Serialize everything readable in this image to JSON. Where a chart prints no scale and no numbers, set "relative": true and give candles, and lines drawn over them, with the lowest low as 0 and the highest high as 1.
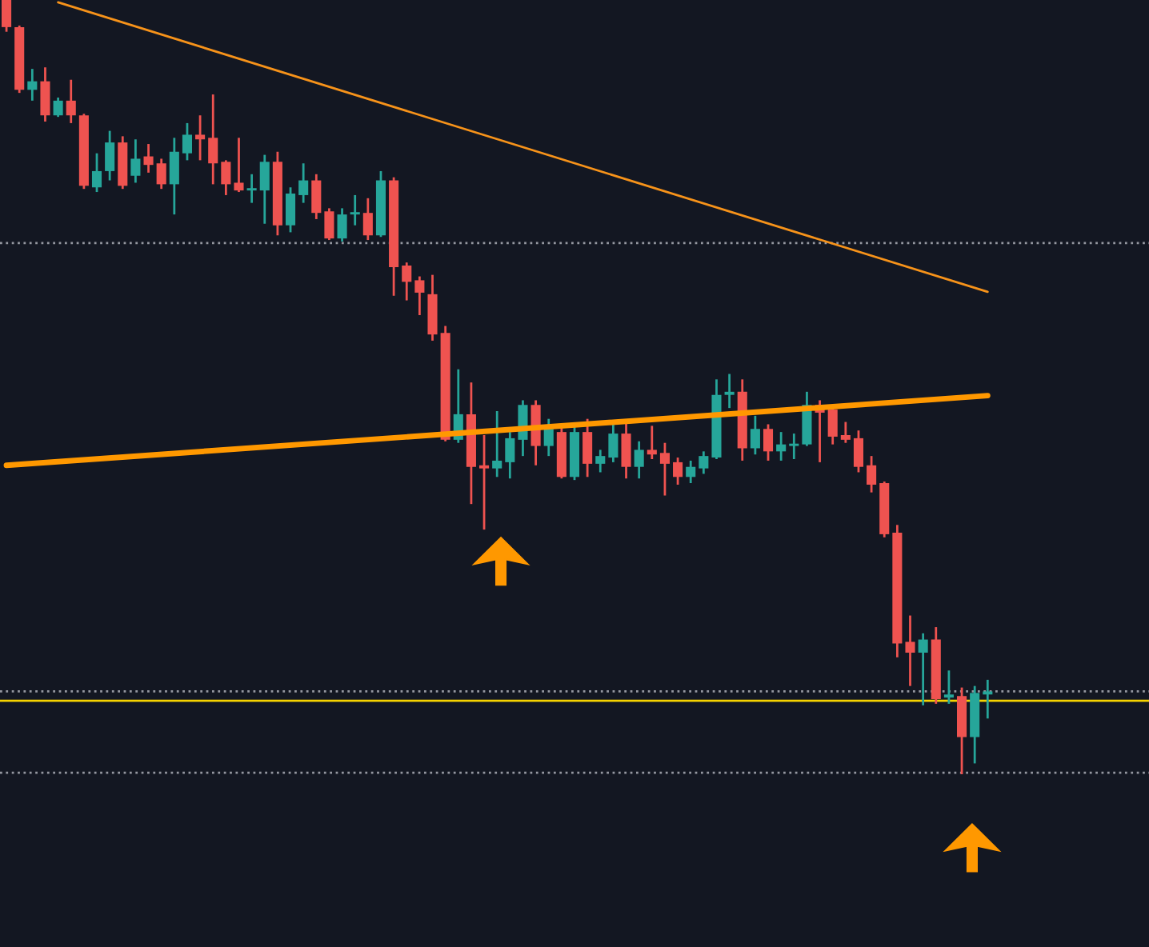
{
  "chart_data": {
    "type": "candlestick",
    "relative": true,
    "tick_labels": false,
    "categories": [
      null,
      null,
      null,
      null,
      null,
      null,
      null,
      null,
      null,
      null,
      null,
      null,
      null,
      null,
      null,
      null,
      null,
      null,
      null,
      null,
      null,
      null,
      null,
      null,
      null,
      null,
      null,
      null,
      null,
      null,
      null,
      null,
      null,
      null,
      null,
      null,
      null,
      null,
      null,
      null,
      null,
      null,
      null,
      null,
      null,
      null,
      null,
      null,
      null,
      null,
      null,
      null,
      null,
      null,
      null,
      null,
      null,
      null,
      null,
      null,
      null,
      null,
      null,
      null,
      null,
      null,
      null,
      null,
      null,
      null,
      null,
      null,
      null,
      null,
      null,
      null,
      null
    ],
    "ohlc": [
      [
        1.0,
        1.0,
        0.959,
        0.965
      ],
      [
        0.965,
        0.967,
        0.88,
        0.884
      ],
      [
        0.884,
        0.911,
        0.87,
        0.895
      ],
      [
        0.895,
        0.913,
        0.843,
        0.851
      ],
      [
        0.851,
        0.874,
        0.849,
        0.87
      ],
      [
        0.87,
        0.897,
        0.841,
        0.851
      ],
      [
        0.851,
        0.853,
        0.756,
        0.76
      ],
      [
        0.758,
        0.802,
        0.752,
        0.779
      ],
      [
        0.779,
        0.831,
        0.767,
        0.816
      ],
      [
        0.816,
        0.824,
        0.756,
        0.76
      ],
      [
        0.773,
        0.82,
        0.764,
        0.795
      ],
      [
        0.798,
        0.814,
        0.777,
        0.787
      ],
      [
        0.789,
        0.795,
        0.756,
        0.762
      ],
      [
        0.762,
        0.822,
        0.723,
        0.804
      ],
      [
        0.802,
        0.841,
        0.793,
        0.826
      ],
      [
        0.826,
        0.851,
        0.793,
        0.82
      ],
      [
        0.822,
        0.878,
        0.762,
        0.789
      ],
      [
        0.791,
        0.793,
        0.748,
        0.762
      ],
      [
        0.764,
        0.822,
        0.752,
        0.754
      ],
      [
        0.754,
        0.775,
        0.738,
        0.756
      ],
      [
        0.754,
        0.8,
        0.711,
        0.791
      ],
      [
        0.791,
        0.804,
        0.696,
        0.709
      ],
      [
        0.709,
        0.758,
        0.7,
        0.75
      ],
      [
        0.748,
        0.789,
        0.738,
        0.767
      ],
      [
        0.767,
        0.775,
        0.717,
        0.725
      ],
      [
        0.727,
        0.731,
        0.69,
        0.692
      ],
      [
        0.692,
        0.731,
        0.688,
        0.723
      ],
      [
        0.723,
        0.748,
        0.709,
        0.725
      ],
      [
        0.725,
        0.744,
        0.69,
        0.696
      ],
      [
        0.696,
        0.779,
        0.694,
        0.767
      ],
      [
        0.767,
        0.771,
        0.618,
        0.655
      ],
      [
        0.657,
        0.661,
        0.612,
        0.636
      ],
      [
        0.638,
        0.643,
        0.593,
        0.622
      ],
      [
        0.62,
        0.645,
        0.56,
        0.568
      ],
      [
        0.57,
        0.579,
        0.43,
        0.432
      ],
      [
        0.432,
        0.523,
        0.428,
        0.465
      ],
      [
        0.465,
        0.506,
        0.349,
        0.397
      ],
      [
        0.399,
        0.438,
        0.316,
        0.395
      ],
      [
        0.395,
        0.469,
        0.384,
        0.405
      ],
      [
        0.403,
        0.442,
        0.382,
        0.434
      ],
      [
        0.432,
        0.483,
        0.411,
        0.477
      ],
      [
        0.477,
        0.483,
        0.399,
        0.424
      ],
      [
        0.424,
        0.459,
        0.411,
        0.446
      ],
      [
        0.442,
        0.45,
        0.382,
        0.384
      ],
      [
        0.384,
        0.452,
        0.38,
        0.442
      ],
      [
        0.442,
        0.459,
        0.384,
        0.401
      ],
      [
        0.401,
        0.419,
        0.39,
        0.411
      ],
      [
        0.409,
        0.455,
        0.403,
        0.44
      ],
      [
        0.44,
        0.455,
        0.382,
        0.397
      ],
      [
        0.397,
        0.43,
        0.382,
        0.419
      ],
      [
        0.419,
        0.45,
        0.407,
        0.413
      ],
      [
        0.415,
        0.428,
        0.36,
        0.401
      ],
      [
        0.403,
        0.409,
        0.374,
        0.384
      ],
      [
        0.384,
        0.405,
        0.376,
        0.397
      ],
      [
        0.395,
        0.417,
        0.388,
        0.411
      ],
      [
        0.409,
        0.51,
        0.407,
        0.49
      ],
      [
        0.49,
        0.517,
        0.473,
        0.494
      ],
      [
        0.494,
        0.51,
        0.405,
        0.421
      ],
      [
        0.421,
        0.463,
        0.413,
        0.446
      ],
      [
        0.446,
        0.452,
        0.405,
        0.417
      ],
      [
        0.417,
        0.442,
        0.405,
        0.426
      ],
      [
        0.424,
        0.44,
        0.407,
        0.426
      ],
      [
        0.426,
        0.494,
        0.424,
        0.477
      ],
      [
        0.477,
        0.483,
        0.403,
        0.467
      ],
      [
        0.471,
        0.475,
        0.426,
        0.436
      ],
      [
        0.438,
        0.455,
        0.428,
        0.432
      ],
      [
        0.434,
        0.444,
        0.39,
        0.397
      ],
      [
        0.399,
        0.411,
        0.364,
        0.374
      ],
      [
        0.376,
        0.378,
        0.306,
        0.31
      ],
      [
        0.312,
        0.322,
        0.151,
        0.169
      ],
      [
        0.171,
        0.205,
        0.114,
        0.157
      ],
      [
        0.157,
        0.182,
        0.089,
        0.174
      ],
      [
        0.174,
        0.19,
        0.091,
        0.097
      ],
      [
        0.099,
        0.134,
        0.091,
        0.103
      ],
      [
        0.101,
        0.112,
        0.0,
        0.048
      ],
      [
        0.048,
        0.114,
        0.014,
        0.105
      ],
      [
        0.103,
        0.122,
        0.072,
        0.107
      ]
    ],
    "series": [
      {
        "type": "line",
        "color": "#f7931a",
        "values": [
          null,
          null,
          null,
          null,
          0.997,
          null,
          null,
          null,
          null,
          null,
          null,
          null,
          null,
          null,
          null,
          null,
          null,
          null,
          null,
          null,
          null,
          null,
          null,
          null,
          null,
          null,
          null,
          null,
          null,
          null,
          null,
          null,
          null,
          null,
          null,
          null,
          null,
          null,
          null,
          null,
          null,
          null,
          null,
          null,
          null,
          null,
          null,
          null,
          null,
          null,
          null,
          null,
          null,
          null,
          null,
          null,
          null,
          null,
          null,
          null,
          null,
          null,
          null,
          null,
          null,
          null,
          null,
          null,
          null,
          null,
          null,
          null,
          null,
          null,
          null,
          null,
          0.623
        ]
      },
      {
        "type": "line",
        "color": "#ff9800",
        "values": [
          0.399,
          null,
          null,
          null,
          null,
          null,
          null,
          null,
          null,
          null,
          null,
          null,
          null,
          null,
          null,
          null,
          null,
          null,
          null,
          null,
          null,
          null,
          null,
          null,
          null,
          null,
          null,
          null,
          null,
          null,
          null,
          null,
          null,
          null,
          null,
          null,
          null,
          null,
          null,
          null,
          null,
          null,
          null,
          null,
          null,
          null,
          null,
          null,
          null,
          null,
          null,
          null,
          null,
          null,
          null,
          null,
          null,
          null,
          null,
          null,
          null,
          null,
          null,
          null,
          null,
          null,
          null,
          null,
          null,
          null,
          null,
          null,
          null,
          null,
          null,
          null,
          0.489
        ]
      }
    ],
    "ref_lines": [
      {
        "axis": "y",
        "value": 0.095,
        "color": "#f5d300",
        "line_style": "solid"
      },
      {
        "axis": "y",
        "value": 0.686,
        "color": "#9598a1",
        "line_style": "dotted"
      },
      {
        "axis": "y",
        "value": 0.107,
        "color": "#9598a1",
        "line_style": "dotted"
      },
      {
        "axis": "y",
        "value": 0.002,
        "color": "#9598a1",
        "line_style": "dotted"
      }
    ]
  }
}
